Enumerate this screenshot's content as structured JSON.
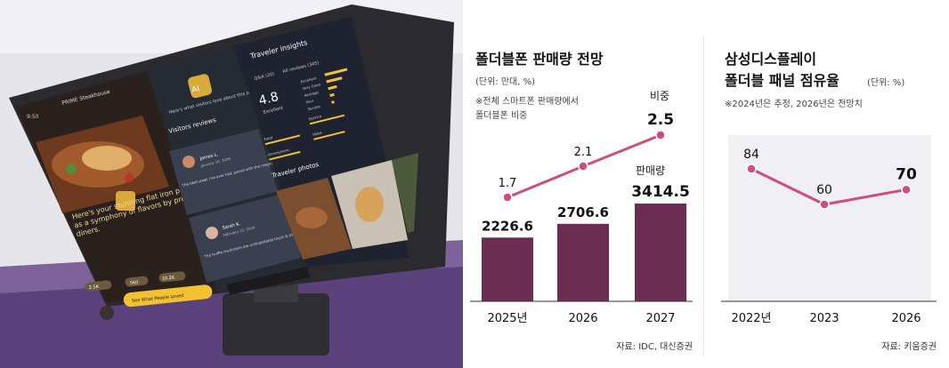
{
  "photo": {
    "left_screen": {
      "time": "9:50",
      "header": "PRIME Steakhouse",
      "caption": "Here's your stunning flat iron plate as a symphony of flavors by previous diners.",
      "stat1": "2.5K",
      "stat2": "560",
      "stat3": "10.2K",
      "cta": "See What People Loved"
    },
    "middle_screen": {
      "ai_label": "AI",
      "subtitle": "Here's what visitors love about this place.",
      "section": "Visitors reviews",
      "review1_name": "James L.",
      "review1_date": "January 10, 2026",
      "review1_text": "The beef steak I've ever had, paired with the magical fountain view",
      "review2_name": "Sarah K.",
      "review2_date": "February 10, 2026",
      "review2_text": "The truffle mushroom are unforgettable touch & more rich"
    },
    "right_screen": {
      "title": "Traveler insights",
      "qa_label": "Q&A (20)",
      "reviews_label": "All reviews (345)",
      "rating": "4.8",
      "rating_word": "Excellent",
      "bars": [
        "Excellent",
        "Very Good",
        "Average",
        "Poor",
        "Terrible"
      ],
      "metric1": "Food",
      "metric2": "Service",
      "metric3": "Atmosphere",
      "metric4": "Value",
      "photos_title": "Traveler photos"
    }
  },
  "chart_data": [
    {
      "type": "bar",
      "title": "폴더블폰 판매량 전망",
      "unit_note": "(단위: 만대, %)",
      "note_line1": "※전체 스마트폰 판매량에서",
      "note_line2": "폴더블폰 비중",
      "categories": [
        "2025년",
        "2026",
        "2027"
      ],
      "series": [
        {
          "name": "판매량",
          "values": [
            2226.6,
            2706.6,
            3414.5
          ],
          "labels": [
            "2226.6",
            "2706.6",
            "3414.5"
          ],
          "color": "#6b2d52"
        },
        {
          "name": "비중",
          "values": [
            1.7,
            2.1,
            2.5
          ],
          "labels": [
            "1.7",
            "2.1",
            "2.5"
          ],
          "color": "#cf4f7a"
        }
      ],
      "source": "자료: IDC, 대신증권"
    },
    {
      "type": "line",
      "title_line1": "삼성디스플레이",
      "title_line2": "폴더블 패널 점유율",
      "unit_note": "(단위: %)",
      "note": "※2024년은 추정, 2026년은 전망치",
      "categories": [
        "2022년",
        "2023",
        "2026"
      ],
      "values": [
        84,
        60,
        70
      ],
      "labels": [
        "84",
        "60",
        "70"
      ],
      "color": "#cf4f7a",
      "source": "자료: 키움증권"
    }
  ]
}
